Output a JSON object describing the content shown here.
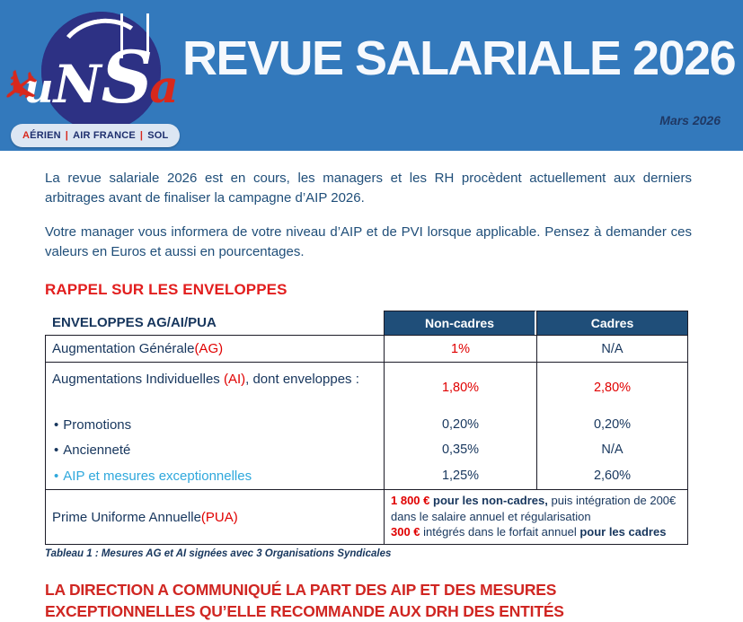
{
  "colors": {
    "header_bg": "#3379BC",
    "logo_navy": "#2D3184",
    "table_header_bg": "#1F4E79",
    "body_text": "#1F4E79",
    "dark_navy": "#17365D",
    "red": "#E00000",
    "heading_red": "#E21E1E",
    "cyan": "#2FA8DC"
  },
  "header": {
    "title": "REVUE SALARIALE 2026",
    "date": "Mars 2026",
    "logo": {
      "letters_u": "u",
      "letters_n": "N",
      "letters_s": "S",
      "letters_a": "a",
      "plane_icon": "✈",
      "banner_runs": [
        {
          "text": "A"
        },
        {
          "text": "ÉRIEN"
        },
        {
          "text": "|"
        },
        {
          "text": "AIR FRANCE"
        },
        {
          "text": "|"
        },
        {
          "text": "SOL"
        }
      ]
    }
  },
  "body": {
    "paragraphs": [
      "La revue salariale 2026 est en cours, les managers et les RH procèdent actuellement aux derniers arbitrages avant de finaliser la campagne d’AIP 2026.",
      "Votre manager vous informera de votre niveau d’AIP et de PVI lorsque applicable. Pensez à demander ces valeurs en Euros et aussi en pourcentages."
    ],
    "section_heading": "RAPPEL SUR LES ENVELOPPES"
  },
  "table": {
    "bullet_char": "•",
    "header": {
      "label": "ENVELOPPES AG/AI/PUA",
      "col_non_cadres": "Non-cadres",
      "col_cadres": "Cadres"
    },
    "ag_row": {
      "label": "Augmentation Générale ",
      "tag": "(AG)",
      "non_cadres": "1%",
      "cadres": "N/A"
    },
    "ai_row": {
      "label": "Augmentations Individuelles ",
      "tag": "(AI)",
      "label_suffix": ", dont enveloppes :",
      "non_cadres": "1,80%",
      "cadres": "2,80%",
      "bullets": [
        {
          "text": "Promotions",
          "non_cadres": "0,20%",
          "cadres": "0,20%"
        },
        {
          "text": "Ancienneté",
          "non_cadres": "0,35%",
          "cadres": "N/A"
        },
        {
          "text": "AIP et mesures exceptionnelles",
          "non_cadres": "1,25%",
          "cadres": "2,60%"
        }
      ]
    },
    "pua_row": {
      "label": "Prime Uniforme Annuelle ",
      "tag": "(PUA)",
      "line1_runs": [
        {
          "text": "1 800 € "
        },
        {
          "text": "pour les non-cadres,"
        },
        {
          "text": " puis intégration de 200€ dans le salaire annuel et régularisation"
        }
      ],
      "line2_runs": [
        {
          "text": "300 € "
        },
        {
          "text": "intégrés dans le forfait annuel "
        },
        {
          "text": "pour les cadres"
        }
      ]
    },
    "caption": "Tableau 1 : Mesures AG et AI signées avec 3 Organisations Syndicales"
  },
  "footer": {
    "heading": "LA DIRECTION A COMMUNIQUÉ LA PART DES AIP ET DES MESURES EXCEPTIONNELLES QU’ELLE RECOMMANDE AUX DRH DES ENTITÉS"
  }
}
